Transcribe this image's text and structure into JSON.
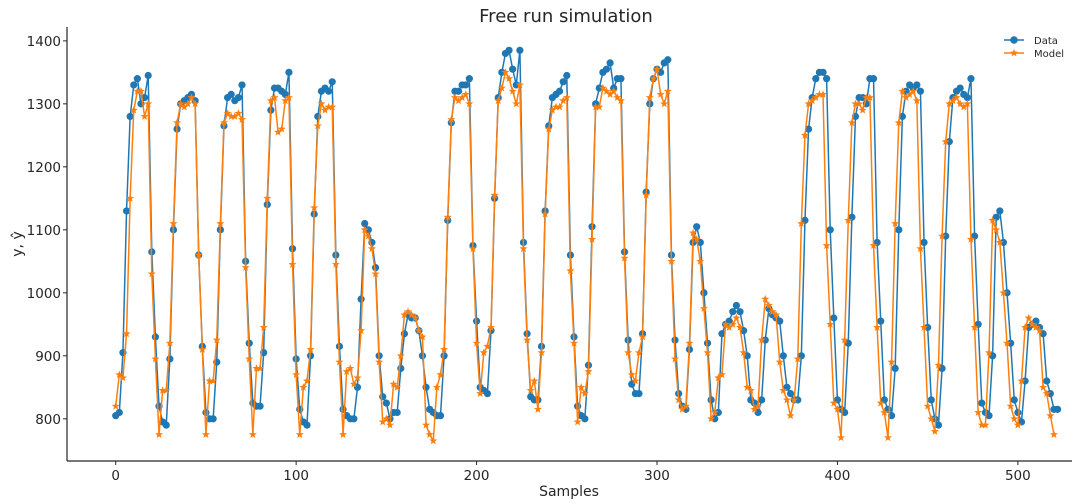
{
  "chart_data": {
    "type": "line",
    "title": "Free run simulation",
    "xlabel": "Samples",
    "ylabel": "y, ŷ",
    "xlim": [
      -27,
      530
    ],
    "ylim": [
      733,
      1422
    ],
    "xticks": [
      0,
      100,
      200,
      300,
      400,
      500
    ],
    "yticks": [
      800,
      900,
      1000,
      1100,
      1200,
      1300,
      1400
    ],
    "grid": false,
    "legend_position": "top-right",
    "x_step": 2,
    "series": [
      {
        "name": "Data",
        "color": "#1f77b4",
        "marker": "circle",
        "values": [
          805,
          810,
          905,
          1130,
          1280,
          1330,
          1340,
          1300,
          1310,
          1345,
          1065,
          930,
          820,
          795,
          790,
          895,
          1100,
          1260,
          1300,
          1305,
          1310,
          1315,
          1305,
          1060,
          915,
          810,
          800,
          800,
          890,
          1100,
          1265,
          1310,
          1315,
          1305,
          1310,
          1330,
          1050,
          920,
          825,
          820,
          820,
          905,
          1140,
          1290,
          1325,
          1325,
          1320,
          1315,
          1350,
          1070,
          895,
          815,
          795,
          790,
          900,
          1125,
          1280,
          1320,
          1325,
          1320,
          1335,
          1060,
          915,
          815,
          805,
          800,
          800,
          850,
          990,
          1110,
          1100,
          1080,
          1040,
          900,
          835,
          825,
          800,
          810,
          810,
          880,
          935,
          965,
          960,
          960,
          940,
          900,
          850,
          815,
          810,
          805,
          805,
          900,
          1115,
          1270,
          1320,
          1320,
          1330,
          1330,
          1340,
          1075,
          955,
          850,
          845,
          840,
          940,
          1150,
          1310,
          1350,
          1380,
          1385,
          1355,
          1330,
          1385,
          1080,
          935,
          835,
          830,
          830,
          915,
          1130,
          1265,
          1310,
          1315,
          1320,
          1335,
          1345,
          1060,
          930,
          820,
          805,
          800,
          885,
          1105,
          1300,
          1325,
          1350,
          1355,
          1365,
          1325,
          1340,
          1340,
          1065,
          925,
          855,
          840,
          840,
          935,
          1160,
          1300,
          1340,
          1355,
          1350,
          1365,
          1370,
          1060,
          925,
          840,
          820,
          815,
          910,
          1080,
          1105,
          1080,
          1000,
          920,
          830,
          800,
          810,
          935,
          950,
          955,
          970,
          980,
          970,
          940,
          900,
          830,
          825,
          810,
          830,
          925,
          975,
          965,
          960,
          955,
          900,
          850,
          840,
          830,
          830,
          900,
          1115,
          1260,
          1310,
          1340,
          1350,
          1350,
          1340,
          1100,
          960,
          830,
          815,
          810,
          920,
          1120,
          1280,
          1310,
          1310,
          1300,
          1340,
          1340,
          1080,
          955,
          830,
          815,
          805,
          880,
          1100,
          1280,
          1320,
          1330,
          1325,
          1330,
          1320,
          1080,
          945,
          830,
          800,
          790,
          880,
          1090,
          1240,
          1310,
          1320,
          1325,
          1315,
          1310,
          1340,
          1090,
          950,
          825,
          810,
          805,
          900,
          1120,
          1130,
          1080,
          1000,
          920,
          830,
          810,
          795,
          860,
          945,
          950,
          955,
          945,
          935,
          860,
          840,
          815,
          815
        ]
      },
      {
        "name": "Model",
        "color": "#ff7f0e",
        "marker": "star",
        "values": [
          820,
          870,
          865,
          935,
          1150,
          1290,
          1320,
          1320,
          1280,
          1300,
          1030,
          895,
          775,
          845,
          845,
          920,
          1110,
          1270,
          1300,
          1295,
          1300,
          1310,
          1300,
          1060,
          910,
          775,
          860,
          860,
          925,
          1110,
          1270,
          1285,
          1280,
          1280,
          1285,
          1275,
          1040,
          895,
          775,
          880,
          880,
          945,
          1150,
          1305,
          1310,
          1255,
          1260,
          1305,
          1310,
          1045,
          870,
          775,
          850,
          860,
          910,
          1135,
          1265,
          1300,
          1290,
          1295,
          1295,
          1045,
          890,
          775,
          875,
          880,
          855,
          865,
          940,
          1100,
          1090,
          1070,
          1030,
          890,
          795,
          800,
          790,
          855,
          850,
          900,
          965,
          970,
          965,
          960,
          940,
          930,
          790,
          775,
          765,
          850,
          870,
          910,
          1120,
          1275,
          1310,
          1305,
          1310,
          1315,
          1300,
          1070,
          920,
          840,
          905,
          915,
          945,
          1155,
          1305,
          1325,
          1350,
          1340,
          1320,
          1300,
          1330,
          1070,
          925,
          845,
          860,
          815,
          905,
          1125,
          1260,
          1290,
          1295,
          1295,
          1305,
          1310,
          1035,
          920,
          795,
          850,
          840,
          875,
          1085,
          1295,
          1295,
          1325,
          1320,
          1315,
          1320,
          1310,
          1305,
          1055,
          905,
          870,
          860,
          905,
          930,
          1155,
          1310,
          1340,
          1355,
          1315,
          1300,
          1320,
          1050,
          895,
          830,
          815,
          820,
          920,
          1095,
          1085,
          1050,
          975,
          905,
          800,
          810,
          865,
          870,
          950,
          945,
          950,
          960,
          945,
          905,
          850,
          845,
          815,
          820,
          925,
          990,
          980,
          970,
          965,
          890,
          845,
          830,
          805,
          830,
          895,
          1110,
          1250,
          1300,
          1305,
          1310,
          1315,
          1315,
          1075,
          950,
          825,
          815,
          770,
          925,
          1115,
          1270,
          1300,
          1300,
          1290,
          1310,
          1310,
          1075,
          945,
          825,
          810,
          770,
          890,
          1110,
          1270,
          1320,
          1310,
          1315,
          1320,
          1305,
          1070,
          945,
          820,
          800,
          780,
          885,
          1090,
          1240,
          1300,
          1305,
          1310,
          1300,
          1295,
          1300,
          1085,
          945,
          810,
          790,
          790,
          905,
          1115,
          1100,
          1080,
          1000,
          920,
          820,
          800,
          790,
          860,
          945,
          960,
          950,
          945,
          940,
          850,
          840,
          805,
          775
        ]
      }
    ]
  }
}
